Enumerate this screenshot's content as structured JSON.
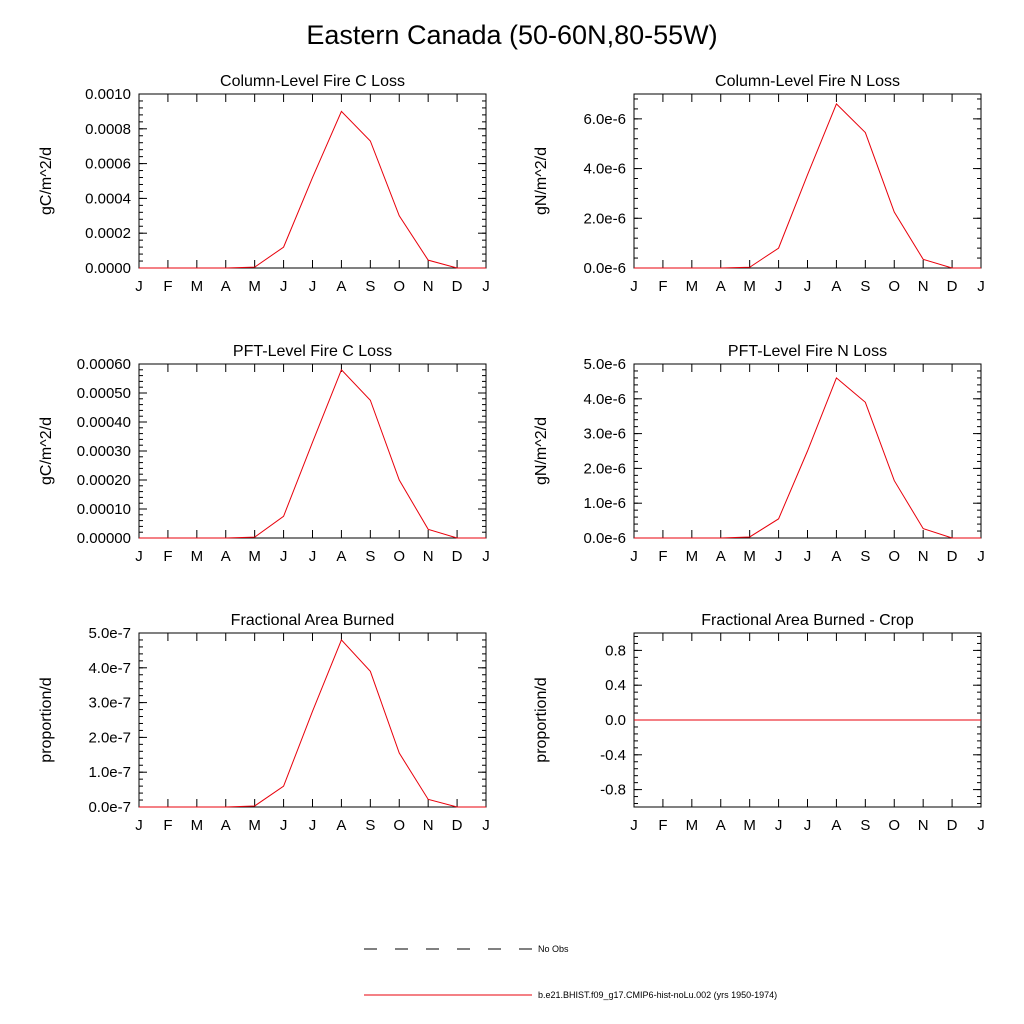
{
  "page": {
    "title": "Eastern Canada (50-60N,80-55W)"
  },
  "months": [
    "J",
    "F",
    "M",
    "A",
    "M",
    "J",
    "J",
    "A",
    "S",
    "O",
    "N",
    "D",
    "J"
  ],
  "chart_data": [
    {
      "type": "line",
      "title": "Column-Level Fire C Loss",
      "ylabel": "gC/m^2/d",
      "ylim": [
        0,
        0.001
      ],
      "yticks": [
        0,
        0.0002,
        0.0004,
        0.0006,
        0.0008,
        0.001
      ],
      "yticklabels": [
        "0.0000",
        "0.0002",
        "0.0004",
        "0.0006",
        "0.0008",
        "0.0010"
      ],
      "x": [
        "J",
        "F",
        "M",
        "A",
        "M",
        "J",
        "J",
        "A",
        "S",
        "O",
        "N",
        "D",
        "J"
      ],
      "series": [
        {
          "color": "#e8000b",
          "values": [
            0,
            0,
            0,
            0,
            5e-06,
            0.00012,
            0.00052,
            0.0009,
            0.00073,
            0.0003,
            4.5e-05,
            0,
            0
          ]
        }
      ]
    },
    {
      "type": "line",
      "title": "Column-Level Fire N Loss",
      "ylabel": "gN/m^2/d",
      "ylim": [
        0,
        7e-06
      ],
      "yticks": [
        0,
        2e-06,
        4e-06,
        6e-06
      ],
      "yticklabels": [
        "0.0e-6",
        "2.0e-6",
        "4.0e-6",
        "6.0e-6"
      ],
      "x": [
        "J",
        "F",
        "M",
        "A",
        "M",
        "J",
        "J",
        "A",
        "S",
        "O",
        "N",
        "D",
        "J"
      ],
      "series": [
        {
          "color": "#e8000b",
          "values": [
            0,
            0,
            0,
            0,
            3e-08,
            8e-07,
            3.75e-06,
            6.6e-06,
            5.45e-06,
            2.25e-06,
            3.5e-07,
            0,
            0
          ]
        }
      ]
    },
    {
      "type": "line",
      "title": "PFT-Level Fire C Loss",
      "ylabel": "gC/m^2/d",
      "ylim": [
        0,
        0.0006
      ],
      "yticks": [
        0,
        0.0001,
        0.0002,
        0.0003,
        0.0004,
        0.0005,
        0.0006
      ],
      "yticklabels": [
        "0.00000",
        "0.00010",
        "0.00020",
        "0.00030",
        "0.00040",
        "0.00050",
        "0.00060"
      ],
      "x": [
        "J",
        "F",
        "M",
        "A",
        "M",
        "J",
        "J",
        "A",
        "S",
        "O",
        "N",
        "D",
        "J"
      ],
      "series": [
        {
          "color": "#e8000b",
          "values": [
            0,
            0,
            0,
            0,
            3e-06,
            7.5e-05,
            0.00033,
            0.00058,
            0.000475,
            0.0002,
            3e-05,
            0,
            0
          ]
        }
      ]
    },
    {
      "type": "line",
      "title": "PFT-Level Fire N Loss",
      "ylabel": "gN/m^2/d",
      "ylim": [
        0,
        5e-06
      ],
      "yticks": [
        0,
        1e-06,
        2e-06,
        3e-06,
        4e-06,
        5e-06
      ],
      "yticklabels": [
        "0.0e-6",
        "1.0e-6",
        "2.0e-6",
        "3.0e-6",
        "4.0e-6",
        "5.0e-6"
      ],
      "x": [
        "J",
        "F",
        "M",
        "A",
        "M",
        "J",
        "J",
        "A",
        "S",
        "O",
        "N",
        "D",
        "J"
      ],
      "series": [
        {
          "color": "#e8000b",
          "values": [
            0,
            0,
            0,
            0,
            3e-08,
            5.5e-07,
            2.5e-06,
            4.6e-06,
            3.9e-06,
            1.65e-06,
            2.7e-07,
            0,
            0
          ]
        }
      ]
    },
    {
      "type": "line",
      "title": "Fractional Area Burned",
      "ylabel": "proportion/d",
      "ylim": [
        0,
        5e-07
      ],
      "yticks": [
        0,
        1e-07,
        2e-07,
        3e-07,
        4e-07,
        5e-07
      ],
      "yticklabels": [
        "0.0e-7",
        "1.0e-7",
        "2.0e-7",
        "3.0e-7",
        "4.0e-7",
        "5.0e-7"
      ],
      "x": [
        "J",
        "F",
        "M",
        "A",
        "M",
        "J",
        "J",
        "A",
        "S",
        "O",
        "N",
        "D",
        "J"
      ],
      "series": [
        {
          "color": "#e8000b",
          "values": [
            0,
            0,
            0,
            0,
            3e-09,
            6e-08,
            2.75e-07,
            4.8e-07,
            3.9e-07,
            1.55e-07,
            2.2e-08,
            0,
            0
          ]
        }
      ]
    },
    {
      "type": "line",
      "title": "Fractional Area Burned - Crop",
      "ylabel": "proportion/d",
      "ylim": [
        -1.0,
        1.0
      ],
      "yticks": [
        -0.8,
        -0.4,
        0,
        0.4,
        0.8
      ],
      "yticklabels": [
        "-0.8",
        "-0.4",
        "0.0",
        "0.4",
        "0.8"
      ],
      "x": [
        "J",
        "F",
        "M",
        "A",
        "M",
        "J",
        "J",
        "A",
        "S",
        "O",
        "N",
        "D",
        "J"
      ],
      "series": [
        {
          "color": "#e8000b",
          "values": [
            0,
            0,
            0,
            0,
            0,
            0,
            0,
            0,
            0,
            0,
            0,
            0,
            0
          ]
        }
      ]
    }
  ],
  "legend": [
    {
      "label": "No Obs",
      "style": "dashed",
      "color": "#000000"
    },
    {
      "label": "b.e21.BHIST.f09_g17.CMIP6-hist-noLu.002 (yrs 1950-1974)",
      "style": "solid",
      "color": "#e8000b"
    }
  ]
}
